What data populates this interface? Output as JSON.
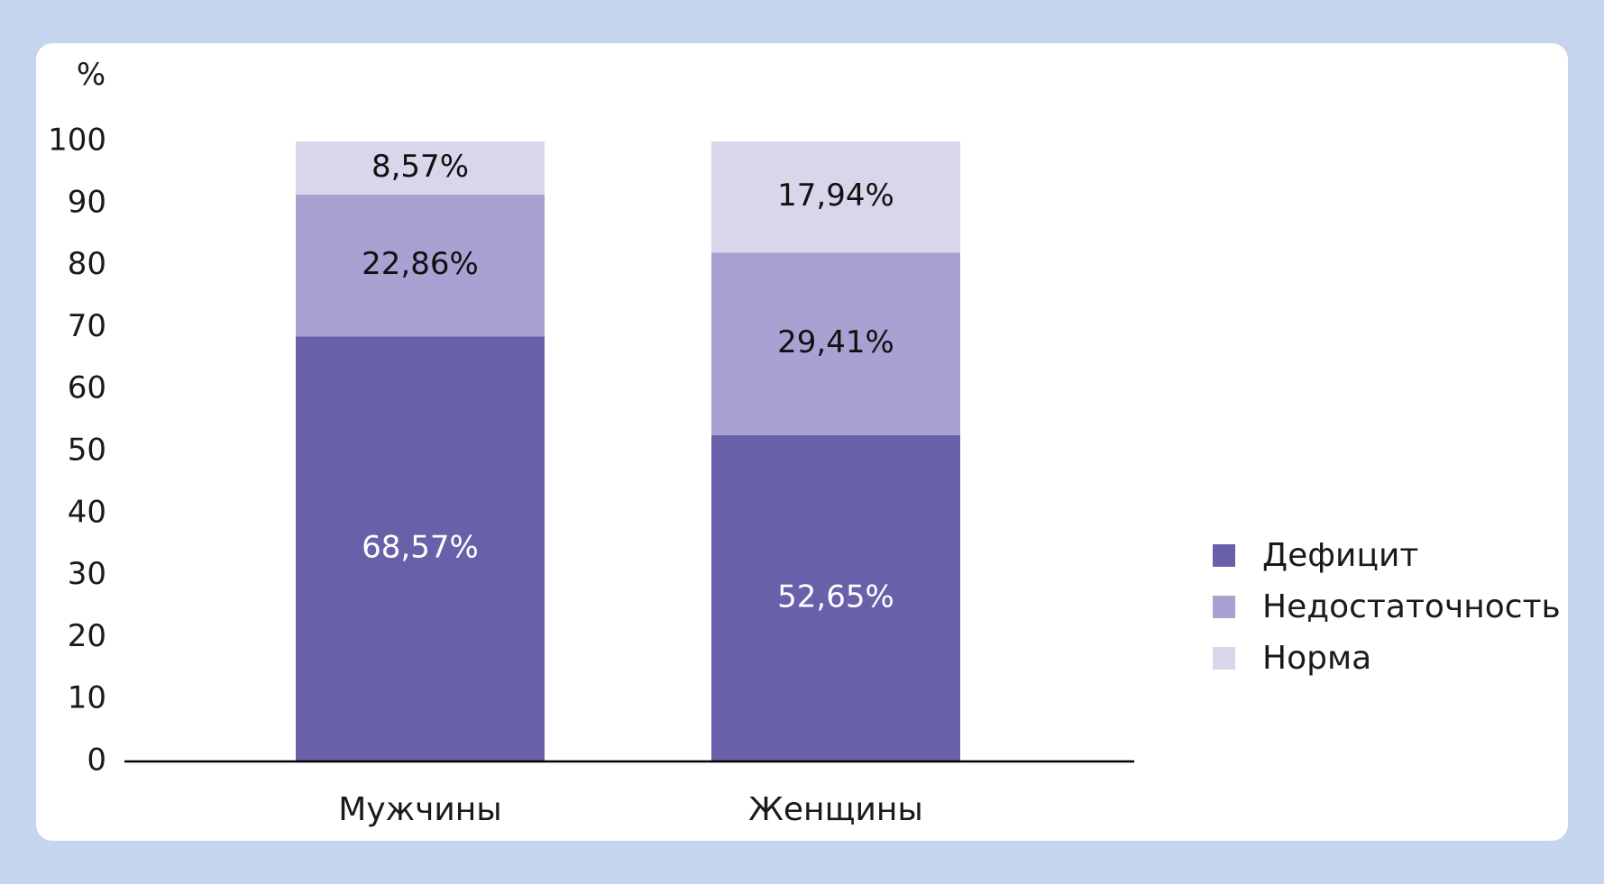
{
  "chart_data": {
    "type": "bar",
    "stacked": true,
    "ylabel": "%",
    "ylim": [
      0,
      100
    ],
    "yticks": [
      0,
      10,
      20,
      30,
      40,
      50,
      60,
      70,
      80,
      90,
      100
    ],
    "categories": [
      "Мужчины",
      "Женщины"
    ],
    "series": [
      {
        "name": "Дефицит",
        "color": "#6960aa",
        "values": [
          68.57,
          52.65
        ],
        "labels": [
          "68,57%",
          "52,65%"
        ],
        "label_color": "#ffffff"
      },
      {
        "name": "Недостаточность",
        "color": "#a7a2d2",
        "values": [
          22.86,
          29.41
        ],
        "labels": [
          "22,86%",
          "29,41%"
        ],
        "label_color": "#111111"
      },
      {
        "name": "Норма",
        "color": "#d9d6eb",
        "values": [
          8.57,
          17.94
        ],
        "labels": [
          "8,57%",
          "17,94%"
        ],
        "label_color": "#111111"
      }
    ],
    "grid": false,
    "legend_position": "right"
  }
}
